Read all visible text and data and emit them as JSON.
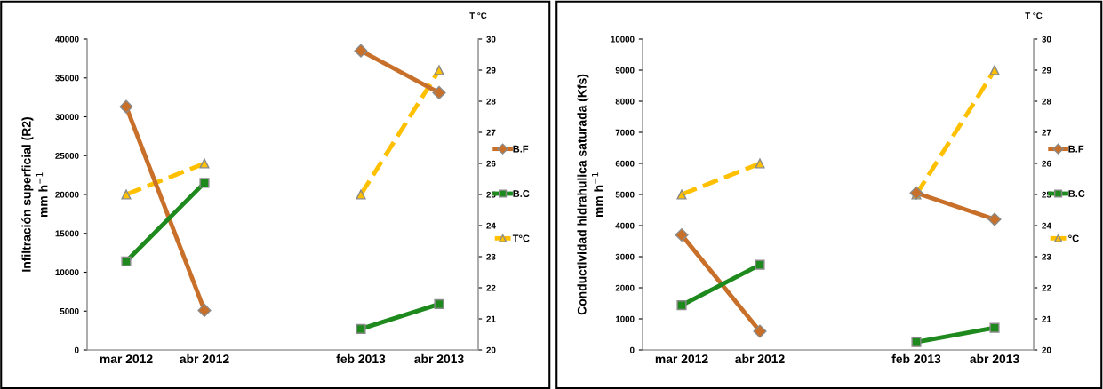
{
  "chart_data": [
    {
      "type": "line",
      "ylabel": "Infiltración superficial (R2)\nmm h$^{−1}$",
      "y2label": "T °C",
      "categories": [
        "mar 2012",
        "abr 2012",
        null,
        "feb 2013",
        "abr 2013"
      ],
      "ylim": [
        0,
        40000
      ],
      "yticks": [
        0,
        5000,
        10000,
        15000,
        20000,
        25000,
        30000,
        35000,
        40000
      ],
      "y2lim": [
        20,
        30
      ],
      "y2ticks": [
        20,
        21,
        22,
        23,
        24,
        25,
        26,
        27,
        28,
        29,
        30
      ],
      "grid": false,
      "legend": "right",
      "series": [
        {
          "name": "B.F",
          "color": "#c8702a",
          "marker": "diamond",
          "line_style": "solid",
          "values": [
            31300,
            5100,
            null,
            38500,
            33100
          ]
        },
        {
          "name": "B.C",
          "color": "#1e8a1e",
          "marker": "square",
          "line_style": "solid",
          "values": [
            11400,
            21500,
            null,
            2700,
            5900
          ]
        },
        {
          "name": "T°C",
          "color": "#ffc000",
          "marker": "triangle",
          "line_style": "dashed",
          "axis": "y2",
          "values": [
            25,
            26,
            null,
            25,
            29
          ]
        }
      ]
    },
    {
      "type": "line",
      "ylabel": "Conductividad hidrahulica saturada (Kfs)\nmm h$^{−1}$",
      "y2label": "T °C",
      "categories": [
        "mar 2012",
        "abr 2012",
        null,
        "feb 2013",
        "abr 2013"
      ],
      "ylim": [
        0,
        10000
      ],
      "yticks": [
        0,
        1000,
        2000,
        3000,
        4000,
        5000,
        6000,
        7000,
        8000,
        9000,
        10000
      ],
      "y2lim": [
        20,
        30
      ],
      "y2ticks": [
        20,
        21,
        22,
        23,
        24,
        25,
        26,
        27,
        28,
        29,
        30
      ],
      "grid": false,
      "legend": "right",
      "series": [
        {
          "name": "B.F",
          "color": "#c8702a",
          "marker": "diamond",
          "line_style": "solid",
          "values": [
            3700,
            600,
            null,
            5050,
            4200
          ]
        },
        {
          "name": "B.C",
          "color": "#1e8a1e",
          "marker": "square",
          "line_style": "solid",
          "values": [
            1440,
            2740,
            null,
            250,
            710
          ]
        },
        {
          "name": "°C",
          "color": "#ffc000",
          "marker": "triangle",
          "line_style": "dashed",
          "axis": "y2",
          "values": [
            25,
            26,
            null,
            25,
            29
          ]
        }
      ]
    }
  ]
}
